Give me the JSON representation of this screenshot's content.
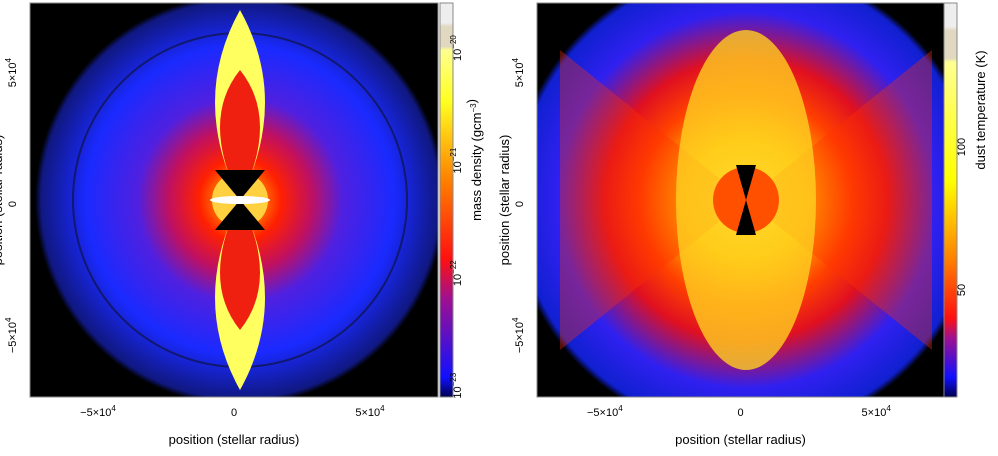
{
  "chart_data": [
    {
      "type": "heatmap",
      "quantity": "mass density",
      "xlabel": "position (stellar radius)",
      "ylabel": "position (stellar radius)",
      "xlim": [
        -75000,
        75000
      ],
      "ylim": [
        -75000,
        75000
      ],
      "xticks": [
        {
          "value": -50000,
          "label": "−5×10",
          "exp": "4"
        },
        {
          "value": 0,
          "label": "0",
          "exp": ""
        },
        {
          "value": 50000,
          "label": "5×10",
          "exp": "4"
        }
      ],
      "yticks": [
        {
          "value": 50000,
          "label": "5×10",
          "exp": "4"
        },
        {
          "value": 0,
          "label": "0",
          "exp": ""
        },
        {
          "value": -50000,
          "label": "−5×10",
          "exp": "4"
        }
      ],
      "colorbar": {
        "label": "mass density (gcm",
        "label_exp": "−3",
        "label_end": ")",
        "scale": "log",
        "range": [
          -23.1,
          -19.6
        ],
        "ticks": [
          {
            "value": -20,
            "label": "10",
            "exp": "−20"
          },
          {
            "value": -21,
            "label": "10",
            "exp": "−21"
          },
          {
            "value": -22,
            "label": "10",
            "exp": "−22"
          },
          {
            "value": -23,
            "label": "10",
            "exp": "−23"
          }
        ]
      }
    },
    {
      "type": "heatmap",
      "quantity": "dust temperature",
      "xlabel": "position (stellar radius)",
      "ylabel": "position (stellar radius)",
      "xlim": [
        -75000,
        75000
      ],
      "ylim": [
        -75000,
        75000
      ],
      "xticks": [
        {
          "value": -50000,
          "label": "−5×10",
          "exp": "4"
        },
        {
          "value": 0,
          "label": "0",
          "exp": ""
        },
        {
          "value": 50000,
          "label": "5×10",
          "exp": "4"
        }
      ],
      "yticks": [
        {
          "value": 50000,
          "label": "5×10",
          "exp": "4"
        },
        {
          "value": 0,
          "label": "0",
          "exp": ""
        },
        {
          "value": -50000,
          "label": "−5×10",
          "exp": "4"
        }
      ],
      "colorbar": {
        "label": "dust temperature (K)",
        "scale": "log",
        "ticks": [
          {
            "value": 100,
            "label": "100"
          },
          {
            "value": 50,
            "label": "50"
          }
        ]
      }
    }
  ]
}
